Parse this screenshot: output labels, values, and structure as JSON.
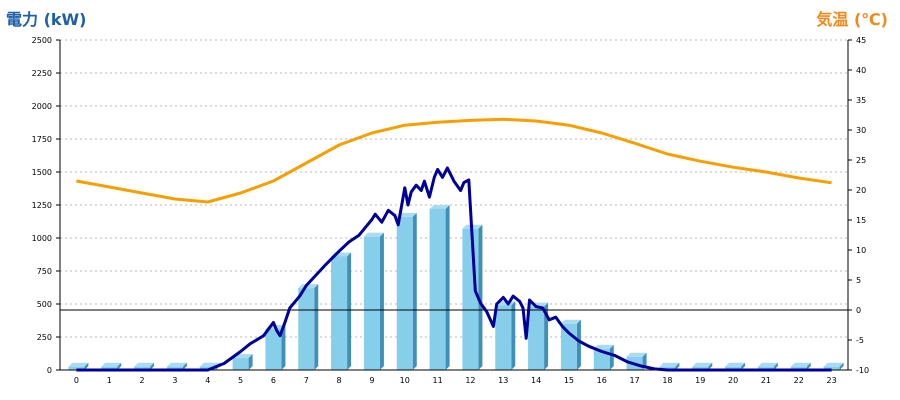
{
  "chart_data": {
    "type": "bar+line",
    "ylabel_left": "電力 (kW)",
    "ylabel_right": "気温 (℃)",
    "left_axis": {
      "min": 0,
      "max": 2500,
      "ticks": [
        0,
        250,
        500,
        750,
        1000,
        1250,
        1500,
        1750,
        2000,
        2250,
        2500
      ]
    },
    "right_axis": {
      "min": -10,
      "max": 45,
      "ticks": [
        -10,
        -5,
        0,
        5,
        10,
        15,
        20,
        25,
        30,
        35,
        40,
        45
      ]
    },
    "grid": true,
    "reference_line": {
      "axis": "right",
      "value": 0
    },
    "categories": [
      "0",
      "1",
      "2",
      "3",
      "4",
      "5",
      "6",
      "7",
      "8",
      "9",
      "10",
      "11",
      "12",
      "13",
      "14",
      "15",
      "16",
      "17",
      "18",
      "19",
      "20",
      "21",
      "22",
      "23"
    ],
    "series": [
      {
        "values": [
          0,
          0,
          0,
          0,
          0,
          90,
          310,
          620,
          860,
          1010,
          1160,
          1220,
          1070,
          490,
          480,
          350,
          160,
          100,
          25,
          0,
          0,
          0,
          0,
          0
        ],
        "kind": "bar",
        "color": "#87ceeb",
        "axis": "left"
      },
      {
        "kind": "line",
        "color": "#000099",
        "axis": "left",
        "points": [
          [
            0,
            0
          ],
          [
            1,
            0
          ],
          [
            2,
            0
          ],
          [
            3,
            0
          ],
          [
            4,
            0
          ],
          [
            4.5,
            50
          ],
          [
            5,
            140
          ],
          [
            5.3,
            200
          ],
          [
            5.7,
            260
          ],
          [
            6,
            360
          ],
          [
            6.1,
            300
          ],
          [
            6.2,
            260
          ],
          [
            6.35,
            360
          ],
          [
            6.5,
            470
          ],
          [
            6.8,
            560
          ],
          [
            7,
            640
          ],
          [
            7.3,
            720
          ],
          [
            7.6,
            800
          ],
          [
            8,
            900
          ],
          [
            8.3,
            970
          ],
          [
            8.6,
            1020
          ],
          [
            8.8,
            1080
          ],
          [
            9,
            1140
          ],
          [
            9.1,
            1180
          ],
          [
            9.3,
            1120
          ],
          [
            9.5,
            1210
          ],
          [
            9.7,
            1170
          ],
          [
            9.8,
            1100
          ],
          [
            10,
            1380
          ],
          [
            10.1,
            1250
          ],
          [
            10.2,
            1350
          ],
          [
            10.35,
            1400
          ],
          [
            10.5,
            1360
          ],
          [
            10.6,
            1430
          ],
          [
            10.75,
            1310
          ],
          [
            10.9,
            1460
          ],
          [
            11,
            1520
          ],
          [
            11.15,
            1460
          ],
          [
            11.3,
            1530
          ],
          [
            11.5,
            1430
          ],
          [
            11.7,
            1360
          ],
          [
            11.8,
            1420
          ],
          [
            11.95,
            1440
          ],
          [
            12.15,
            600
          ],
          [
            12.3,
            510
          ],
          [
            12.5,
            440
          ],
          [
            12.7,
            330
          ],
          [
            12.8,
            500
          ],
          [
            13,
            550
          ],
          [
            13.15,
            500
          ],
          [
            13.3,
            560
          ],
          [
            13.5,
            520
          ],
          [
            13.6,
            470
          ],
          [
            13.7,
            240
          ],
          [
            13.8,
            530
          ],
          [
            14,
            480
          ],
          [
            14.2,
            470
          ],
          [
            14.4,
            380
          ],
          [
            14.6,
            400
          ],
          [
            14.8,
            330
          ],
          [
            15,
            280
          ],
          [
            15.3,
            220
          ],
          [
            15.6,
            180
          ],
          [
            16,
            140
          ],
          [
            16.4,
            110
          ],
          [
            16.8,
            60
          ],
          [
            17.2,
            30
          ],
          [
            17.6,
            8
          ],
          [
            18,
            0
          ],
          [
            19,
            0
          ],
          [
            20,
            0
          ],
          [
            21,
            0
          ],
          [
            22,
            0
          ],
          [
            23,
            0
          ]
        ]
      },
      {
        "kind": "line",
        "color": "#f5a000",
        "axis": "right",
        "points": [
          [
            0,
            21.5
          ],
          [
            1,
            20.5
          ],
          [
            2,
            19.5
          ],
          [
            3,
            18.5
          ],
          [
            4,
            18
          ],
          [
            5,
            19.5
          ],
          [
            6,
            21.5
          ],
          [
            7,
            24.5
          ],
          [
            8,
            27.5
          ],
          [
            9,
            29.5
          ],
          [
            10,
            30.8
          ],
          [
            11,
            31.3
          ],
          [
            12,
            31.6
          ],
          [
            13,
            31.8
          ],
          [
            14,
            31.5
          ],
          [
            15,
            30.8
          ],
          [
            16,
            29.5
          ],
          [
            17,
            27.8
          ],
          [
            18,
            26
          ],
          [
            19,
            24.8
          ],
          [
            20,
            23.8
          ],
          [
            21,
            23
          ],
          [
            22,
            22
          ],
          [
            23,
            21.2
          ]
        ]
      }
    ]
  }
}
